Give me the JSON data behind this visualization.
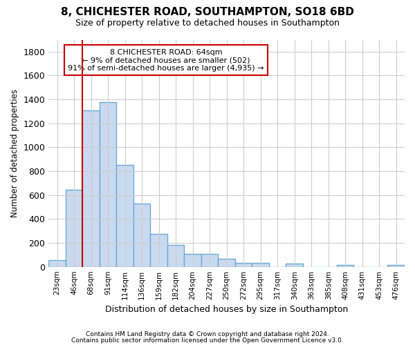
{
  "title": "8, CHICHESTER ROAD, SOUTHAMPTON, SO18 6BD",
  "subtitle": "Size of property relative to detached houses in Southampton",
  "xlabel": "Distribution of detached houses by size in Southampton",
  "ylabel": "Number of detached properties",
  "footnote1": "Contains HM Land Registry data © Crown copyright and database right 2024.",
  "footnote2": "Contains public sector information licensed under the Open Government Licence v3.0.",
  "annotation_line1": "8 CHICHESTER ROAD: 64sqm",
  "annotation_line2": "← 9% of detached houses are smaller (502)",
  "annotation_line3": "91% of semi-detached houses are larger (4,935) →",
  "bar_color": "#c9daf0",
  "bar_edge_color": "#6aaad4",
  "vline_color": "#cc0000",
  "annotation_box_edge": "#cc0000",
  "annotation_box_face": "#ffffff",
  "grid_color": "#cccccc",
  "background_color": "#ffffff",
  "categories": [
    "23sqm",
    "46sqm",
    "68sqm",
    "91sqm",
    "114sqm",
    "136sqm",
    "159sqm",
    "182sqm",
    "204sqm",
    "227sqm",
    "250sqm",
    "272sqm",
    "295sqm",
    "317sqm",
    "340sqm",
    "363sqm",
    "385sqm",
    "408sqm",
    "431sqm",
    "453sqm",
    "476sqm"
  ],
  "values": [
    55,
    645,
    1310,
    1375,
    850,
    530,
    275,
    180,
    105,
    105,
    65,
    35,
    30,
    0,
    25,
    0,
    0,
    15,
    0,
    0,
    15
  ],
  "vline_x_index": 2,
  "ylim": [
    0,
    1900
  ],
  "yticks": [
    0,
    200,
    400,
    600,
    800,
    1000,
    1200,
    1400,
    1600,
    1800
  ],
  "figsize": [
    6.0,
    5.0
  ],
  "dpi": 100
}
